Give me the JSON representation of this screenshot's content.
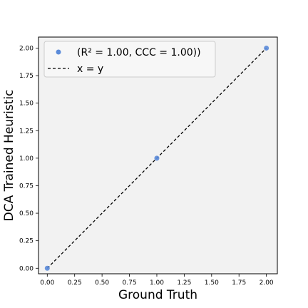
{
  "chart_data": {
    "type": "scatter",
    "title": "",
    "xlabel": "Ground Truth",
    "ylabel": "DCA Trained Heuristic",
    "xlim": [
      -0.08,
      2.1
    ],
    "ylim": [
      -0.05,
      2.1
    ],
    "xticks": [
      "0.00",
      "0.25",
      "0.50",
      "0.75",
      "1.00",
      "1.25",
      "1.50",
      "1.75",
      "2.00"
    ],
    "yticks": [
      "0.00",
      "0.25",
      "0.50",
      "0.75",
      "1.00",
      "1.25",
      "1.50",
      "1.75",
      "2.00"
    ],
    "grid": false,
    "legend_position": "top-left",
    "background": "#f2f2f2",
    "series": [
      {
        "name": "(R² = 1.00, CCC = 1.00))",
        "type": "scatter",
        "color": "#5b8bd9",
        "x": [
          0,
          1,
          2
        ],
        "y": [
          0,
          1,
          2
        ]
      },
      {
        "name": "x = y",
        "type": "line",
        "style": "dashed",
        "color": "#000000",
        "x": [
          0,
          2
        ],
        "y": [
          0,
          2
        ]
      }
    ]
  }
}
